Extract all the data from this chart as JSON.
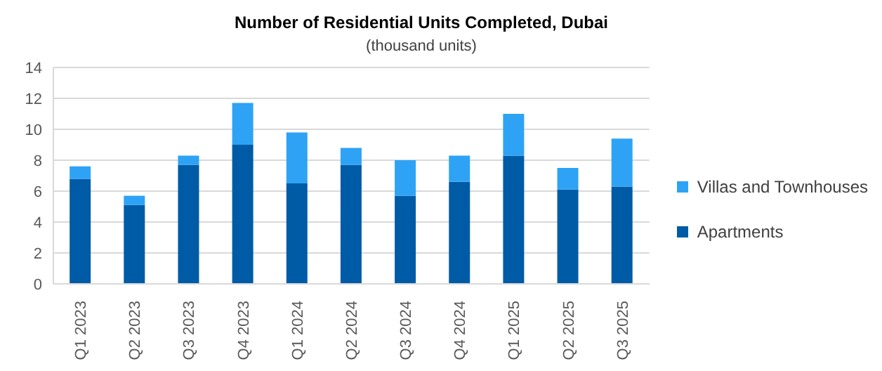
{
  "chart_data": {
    "type": "bar",
    "title": "Number of Residential Units Completed, Dubai",
    "subtitle": "(thousand units)",
    "categories": [
      "Q1 2023",
      "Q2 2023",
      "Q3 2023",
      "Q4 2023",
      "Q1 2024",
      "Q2 2024",
      "Q3 2024",
      "Q4 2024",
      "Q1 2025",
      "Q2 2025",
      "Q3 2025"
    ],
    "series": [
      {
        "name": "Apartments",
        "color": "#005ba6",
        "values": [
          6.8,
          5.1,
          7.7,
          9.0,
          6.5,
          7.7,
          5.7,
          6.6,
          8.3,
          6.1,
          6.3
        ]
      },
      {
        "name": "Villas and Townhouses",
        "color": "#2ea3f5",
        "values": [
          0.8,
          0.6,
          0.6,
          2.7,
          3.3,
          1.1,
          2.3,
          1.7,
          2.7,
          1.4,
          3.1
        ]
      }
    ],
    "stacked": true,
    "ylim": [
      0,
      14
    ],
    "yticks": [
      0,
      2,
      4,
      6,
      8,
      10,
      12,
      14
    ],
    "grid": "y",
    "legend": "right"
  }
}
